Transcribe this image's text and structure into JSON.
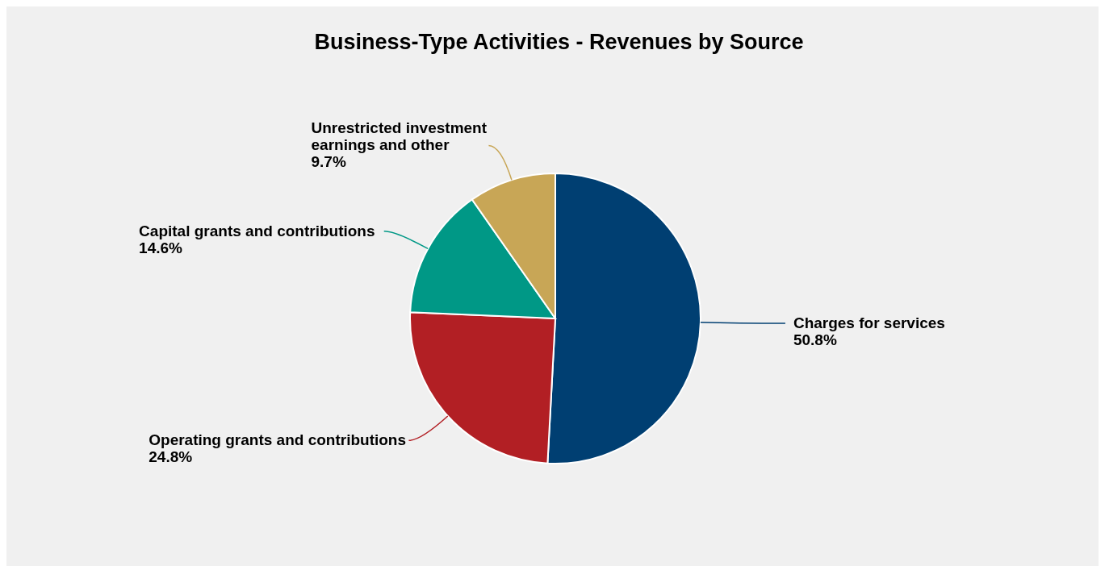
{
  "chart_data": {
    "type": "pie",
    "title": "Business-Type Activities - Revenues by Source",
    "categories": [
      "Charges for services",
      "Operating grants and contributions",
      "Capital grants and contributions",
      "Unrestricted investment earnings and other"
    ],
    "values": [
      50.8,
      24.8,
      14.6,
      9.7
    ],
    "colors": [
      "#003f72",
      "#b21f24",
      "#009886",
      "#c8a656"
    ],
    "value_labels": [
      "50.8%",
      "24.8%",
      "14.6%",
      "9.7%"
    ]
  }
}
